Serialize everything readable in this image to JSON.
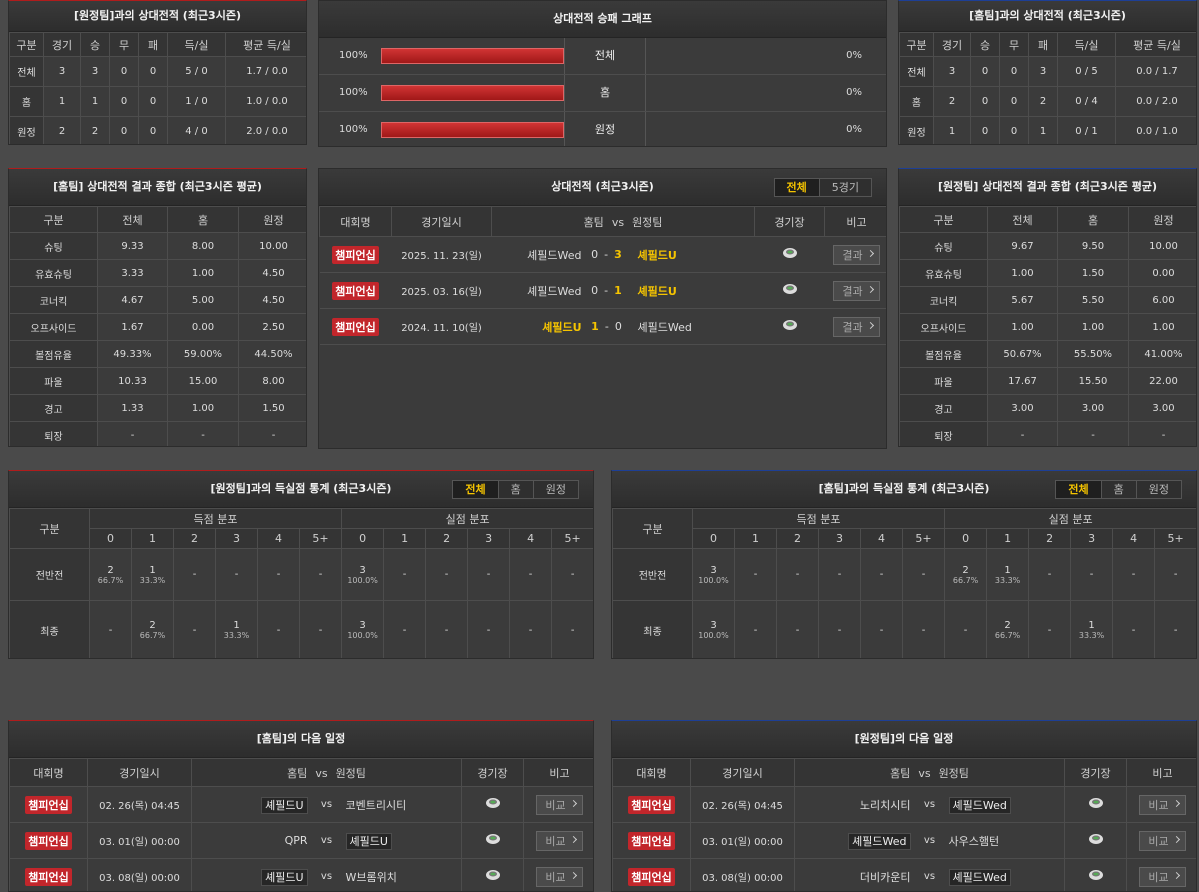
{
  "h2h_vs_away": {
    "title": "[원정팀]과의 상대전적 (최근3시즌)",
    "columns": [
      "구분",
      "경기",
      "승",
      "무",
      "패",
      "득/실",
      "평균 득/실"
    ],
    "rows": [
      [
        "전체",
        3,
        3,
        0,
        0,
        "5 / 0",
        "1.7 / 0.0"
      ],
      [
        "홈",
        1,
        1,
        0,
        0,
        "1 / 0",
        "1.0 / 0.0"
      ],
      [
        "원정",
        2,
        2,
        0,
        0,
        "4 / 0",
        "2.0 / 0.0"
      ]
    ]
  },
  "win_graph": {
    "title": "상대전적 승패 그래프",
    "rows": [
      {
        "label": "전체",
        "home": 100,
        "home_label": "100%",
        "away": 0,
        "away_label": "0%"
      },
      {
        "label": "홈",
        "home": 100,
        "home_label": "100%",
        "away": 0,
        "away_label": "0%"
      },
      {
        "label": "원정",
        "home": 100,
        "home_label": "100%",
        "away": 0,
        "away_label": "0%"
      }
    ]
  },
  "h2h_vs_home": {
    "title": "[홈팀]과의 상대전적 (최근3시즌)",
    "columns": [
      "구분",
      "경기",
      "승",
      "무",
      "패",
      "득/실",
      "평균 득/실"
    ],
    "rows": [
      [
        "전체",
        3,
        0,
        0,
        3,
        "0 / 5",
        "0.0 / 1.7"
      ],
      [
        "홈",
        2,
        0,
        0,
        2,
        "0 / 4",
        "0.0 / 2.0"
      ],
      [
        "원정",
        1,
        0,
        0,
        1,
        "0 / 1",
        "0.0 / 1.0"
      ]
    ]
  },
  "summary_home": {
    "title": "[홈팀] 상대전적 결과 종합 (최근3시즌 평균)",
    "columns": [
      "구분",
      "전체",
      "홈",
      "원정"
    ],
    "rows": [
      [
        "슈팅",
        "9.33",
        "8.00",
        "10.00"
      ],
      [
        "유효슈팅",
        "3.33",
        "1.00",
        "4.50"
      ],
      [
        "코너킥",
        "4.67",
        "5.00",
        "4.50"
      ],
      [
        "오프사이드",
        "1.67",
        "0.00",
        "2.50"
      ],
      [
        "볼점유율",
        "49.33%",
        "59.00%",
        "44.50%"
      ],
      [
        "파울",
        "10.33",
        "15.00",
        "8.00"
      ],
      [
        "경고",
        "1.33",
        "1.00",
        "1.50"
      ],
      [
        "퇴장",
        "-",
        "-",
        "-"
      ]
    ]
  },
  "recent": {
    "title": "상대전적 (최근3시즌)",
    "tabs": [
      "전체",
      "5경기"
    ],
    "columns": [
      "대회명",
      "경기일시",
      "홈팀",
      "vs",
      "원정팀",
      "경기장",
      "비고"
    ],
    "score_separator": "-",
    "matches": [
      {
        "league": "챔피언십",
        "date": "2025. 11. 23(일)",
        "home": "셰필드Wed",
        "home_score": 0,
        "away_score": 3,
        "away": "셰필드U",
        "winner": "away",
        "note": "결과"
      },
      {
        "league": "챔피언십",
        "date": "2025. 03. 16(일)",
        "home": "셰필드Wed",
        "home_score": 0,
        "away_score": 1,
        "away": "셰필드U",
        "winner": "away",
        "note": "결과"
      },
      {
        "league": "챔피언십",
        "date": "2024. 11. 10(일)",
        "home": "셰필드U",
        "home_score": 1,
        "away_score": 0,
        "away": "셰필드Wed",
        "winner": "home",
        "note": "결과"
      }
    ]
  },
  "summary_away": {
    "title": "[원정팀] 상대전적 결과 종합 (최근3시즌 평균)",
    "columns": [
      "구분",
      "전체",
      "홈",
      "원정"
    ],
    "rows": [
      [
        "슈팅",
        "9.67",
        "9.50",
        "10.00"
      ],
      [
        "유효슈팅",
        "1.00",
        "1.50",
        "0.00"
      ],
      [
        "코너킥",
        "5.67",
        "5.50",
        "6.00"
      ],
      [
        "오프사이드",
        "1.00",
        "1.00",
        "1.00"
      ],
      [
        "볼점유율",
        "50.67%",
        "55.50%",
        "41.00%"
      ],
      [
        "파울",
        "17.67",
        "15.50",
        "22.00"
      ],
      [
        "경고",
        "3.00",
        "3.00",
        "3.00"
      ],
      [
        "퇴장",
        "-",
        "-",
        "-"
      ]
    ]
  },
  "goals_vs_away": {
    "title": "[원정팀]과의 득실점 통계 (최근3시즌)",
    "tabs": [
      "전체",
      "홈",
      "원정"
    ],
    "row_header": "구분",
    "scored_header": "득점 분포",
    "conceded_header": "실점 분포",
    "buckets": [
      "0",
      "1",
      "2",
      "3",
      "4",
      "5+"
    ],
    "rows": [
      {
        "label": "전반전",
        "scored": [
          {
            "count": 2,
            "pct": "66.7%"
          },
          {
            "count": 1,
            "pct": "33.3%"
          },
          "-",
          "-",
          "-",
          "-"
        ],
        "conceded": [
          {
            "count": 3,
            "pct": "100.0%"
          },
          "-",
          "-",
          "-",
          "-",
          "-"
        ]
      },
      {
        "label": "최종",
        "scored": [
          "-",
          {
            "count": 2,
            "pct": "66.7%"
          },
          "-",
          {
            "count": 1,
            "pct": "33.3%"
          },
          "-",
          "-"
        ],
        "conceded": [
          {
            "count": 3,
            "pct": "100.0%"
          },
          "-",
          "-",
          "-",
          "-",
          "-"
        ]
      }
    ]
  },
  "goals_vs_home": {
    "title": "[홈팀]과의 득실점 통계 (최근3시즌)",
    "tabs": [
      "전체",
      "홈",
      "원정"
    ],
    "row_header": "구분",
    "scored_header": "득점 분포",
    "conceded_header": "실점 분포",
    "buckets": [
      "0",
      "1",
      "2",
      "3",
      "4",
      "5+"
    ],
    "rows": [
      {
        "label": "전반전",
        "scored": [
          {
            "count": 3,
            "pct": "100.0%"
          },
          "-",
          "-",
          "-",
          "-",
          "-"
        ],
        "conceded": [
          {
            "count": 2,
            "pct": "66.7%"
          },
          {
            "count": 1,
            "pct": "33.3%"
          },
          "-",
          "-",
          "-",
          "-"
        ]
      },
      {
        "label": "최종",
        "scored": [
          {
            "count": 3,
            "pct": "100.0%"
          },
          "-",
          "-",
          "-",
          "-",
          "-"
        ],
        "conceded": [
          "-",
          {
            "count": 2,
            "pct": "66.7%"
          },
          "-",
          {
            "count": 1,
            "pct": "33.3%"
          },
          "-",
          "-"
        ]
      }
    ]
  },
  "schedule_home": {
    "title": "[홈팀]의 다음 일정",
    "columns": [
      "대회명",
      "경기일시",
      "홈팀",
      "vs",
      "원정팀",
      "경기장",
      "비고"
    ],
    "matches": [
      {
        "league": "챔피언십",
        "date": "02. 26(목) 04:45",
        "home": "셰필드U",
        "vs": "vs",
        "away": "코벤트리시티",
        "highlight": "home",
        "note": "비교"
      },
      {
        "league": "챔피언십",
        "date": "03. 01(일) 00:00",
        "home": "QPR",
        "vs": "vs",
        "away": "셰필드U",
        "highlight": "away",
        "note": "비교"
      },
      {
        "league": "챔피언십",
        "date": "03. 08(일) 00:00",
        "home": "셰필드U",
        "vs": "vs",
        "away": "W브롬위치",
        "highlight": "home",
        "note": "비교"
      }
    ]
  },
  "schedule_away": {
    "title": "[원정팀]의 다음 일정",
    "columns": [
      "대회명",
      "경기일시",
      "홈팀",
      "vs",
      "원정팀",
      "경기장",
      "비고"
    ],
    "matches": [
      {
        "league": "챔피언십",
        "date": "02. 26(목) 04:45",
        "home": "노리치시티",
        "vs": "vs",
        "away": "셰필드Wed",
        "highlight": "away",
        "note": "비교"
      },
      {
        "league": "챔피언십",
        "date": "03. 01(일) 00:00",
        "home": "셰필드Wed",
        "vs": "vs",
        "away": "사우스햄턴",
        "highlight": "home",
        "note": "비교"
      },
      {
        "league": "챔피언십",
        "date": "03. 08(일) 00:00",
        "home": "더비카운티",
        "vs": "vs",
        "away": "셰필드Wed",
        "highlight": "away",
        "note": "비교"
      }
    ]
  }
}
